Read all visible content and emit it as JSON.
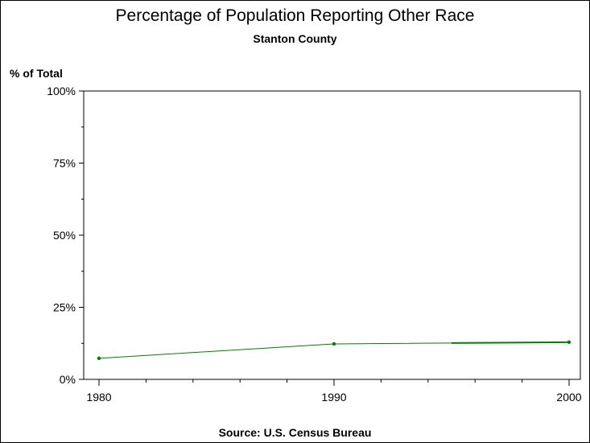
{
  "chart_data": {
    "type": "line",
    "title": "Percentage of Population Reporting Other Race",
    "subtitle": "Stanton County",
    "ylabel": "% of Total",
    "source": "Source: U.S. Census Bureau",
    "x": [
      1980,
      1990,
      2000
    ],
    "xticks": [
      "1980",
      "1990",
      "2000"
    ],
    "xlim": [
      1980,
      2000
    ],
    "ylim": [
      0,
      100
    ],
    "yticks": [
      "0%",
      "25%",
      "50%",
      "75%",
      "100%"
    ],
    "ytick_values": [
      0,
      25,
      50,
      75,
      100
    ],
    "series": [
      {
        "values": [
          7.3,
          12.3,
          12.9
        ],
        "color": "#008000"
      }
    ],
    "grid": false
  }
}
